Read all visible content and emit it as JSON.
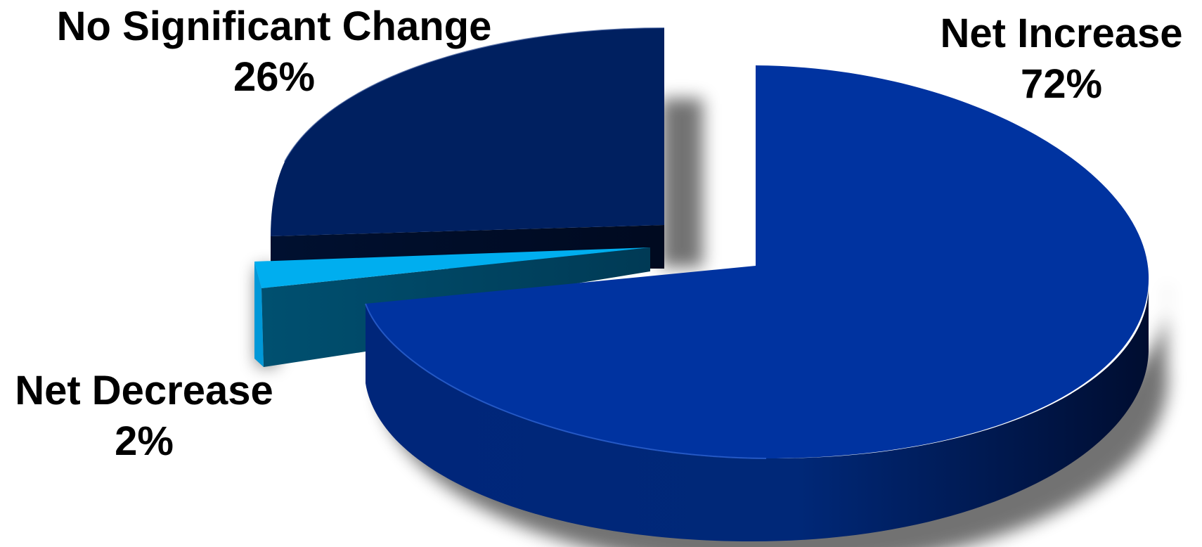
{
  "chart_data": {
    "type": "pie",
    "title": "",
    "slices": [
      {
        "label": "Net Increase",
        "value": 72,
        "value_label": "72%",
        "color": "#0033A0",
        "exploded": true
      },
      {
        "label": "Net Decrease",
        "value": 2,
        "value_label": "2%",
        "color": "#00AEEF",
        "exploded": true
      },
      {
        "label": "No Significant Change",
        "value": 26,
        "value_label": "26%",
        "color": "#002060",
        "exploded": true
      }
    ],
    "style": "3d-exploded",
    "legend": "none"
  }
}
